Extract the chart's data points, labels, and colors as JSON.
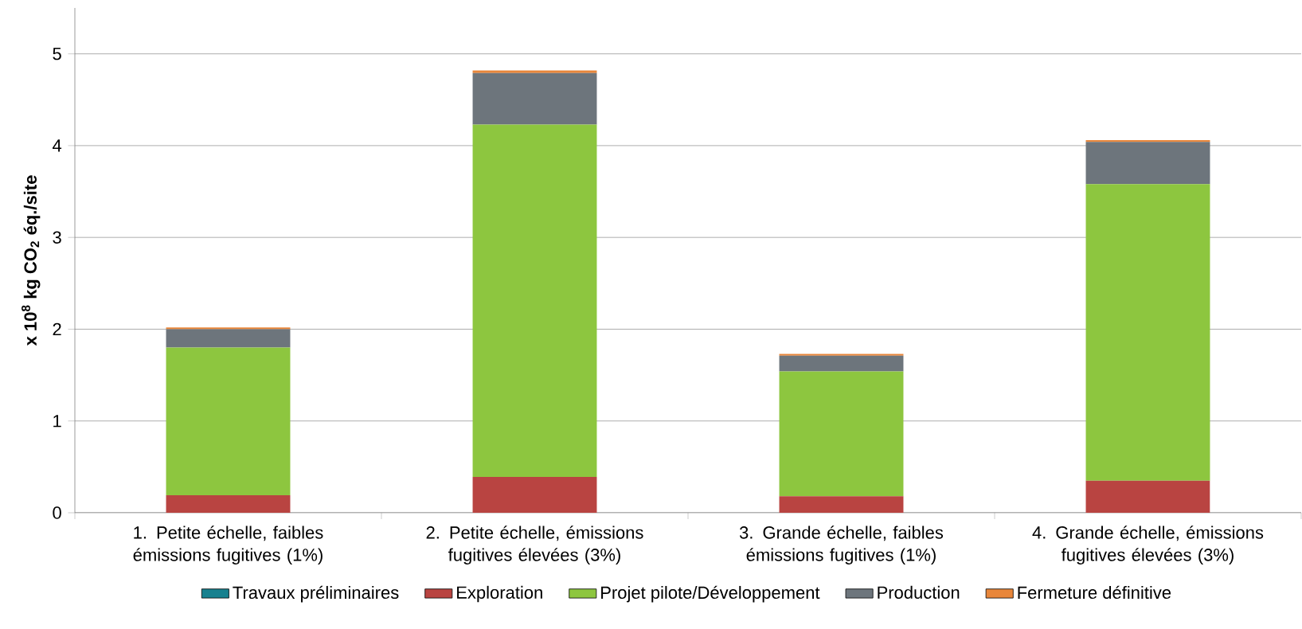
{
  "chart_data": {
    "type": "bar",
    "stacked": true,
    "ylabel": "x 10$^{8}$ kg CO$_{2}$ éq./site",
    "categories": [
      "1. Petite échelle, faibles émissions fugitives (1%)",
      "2. Petite échelle, émissions fugitives élevées (3%)",
      "3. Grande échelle, faibles émissions fugitives (1%)",
      "4. Grande échelle, émissions fugitives élevées (3%)"
    ],
    "series": [
      {
        "name": "Travaux préliminaires",
        "color": "#17818f",
        "values": [
          0,
          0,
          0,
          0
        ]
      },
      {
        "name": "Exploration",
        "color": "#b94441",
        "values": [
          0.19,
          0.39,
          0.18,
          0.35
        ]
      },
      {
        "name": "Projet pilote/Développement",
        "color": "#8dc63f",
        "values": [
          1.61,
          3.84,
          1.36,
          3.23
        ]
      },
      {
        "name": "Production",
        "color": "#6d757c",
        "values": [
          0.2,
          0.56,
          0.17,
          0.46
        ]
      },
      {
        "name": "Fermeture définitive",
        "color": "#e8863a",
        "values": [
          0.02,
          0.03,
          0.02,
          0.02
        ]
      }
    ],
    "ylim": [
      0,
      5.5
    ],
    "yticks": [
      0,
      1,
      2,
      3,
      4,
      5
    ],
    "grid": "y",
    "legend": "bottom"
  }
}
